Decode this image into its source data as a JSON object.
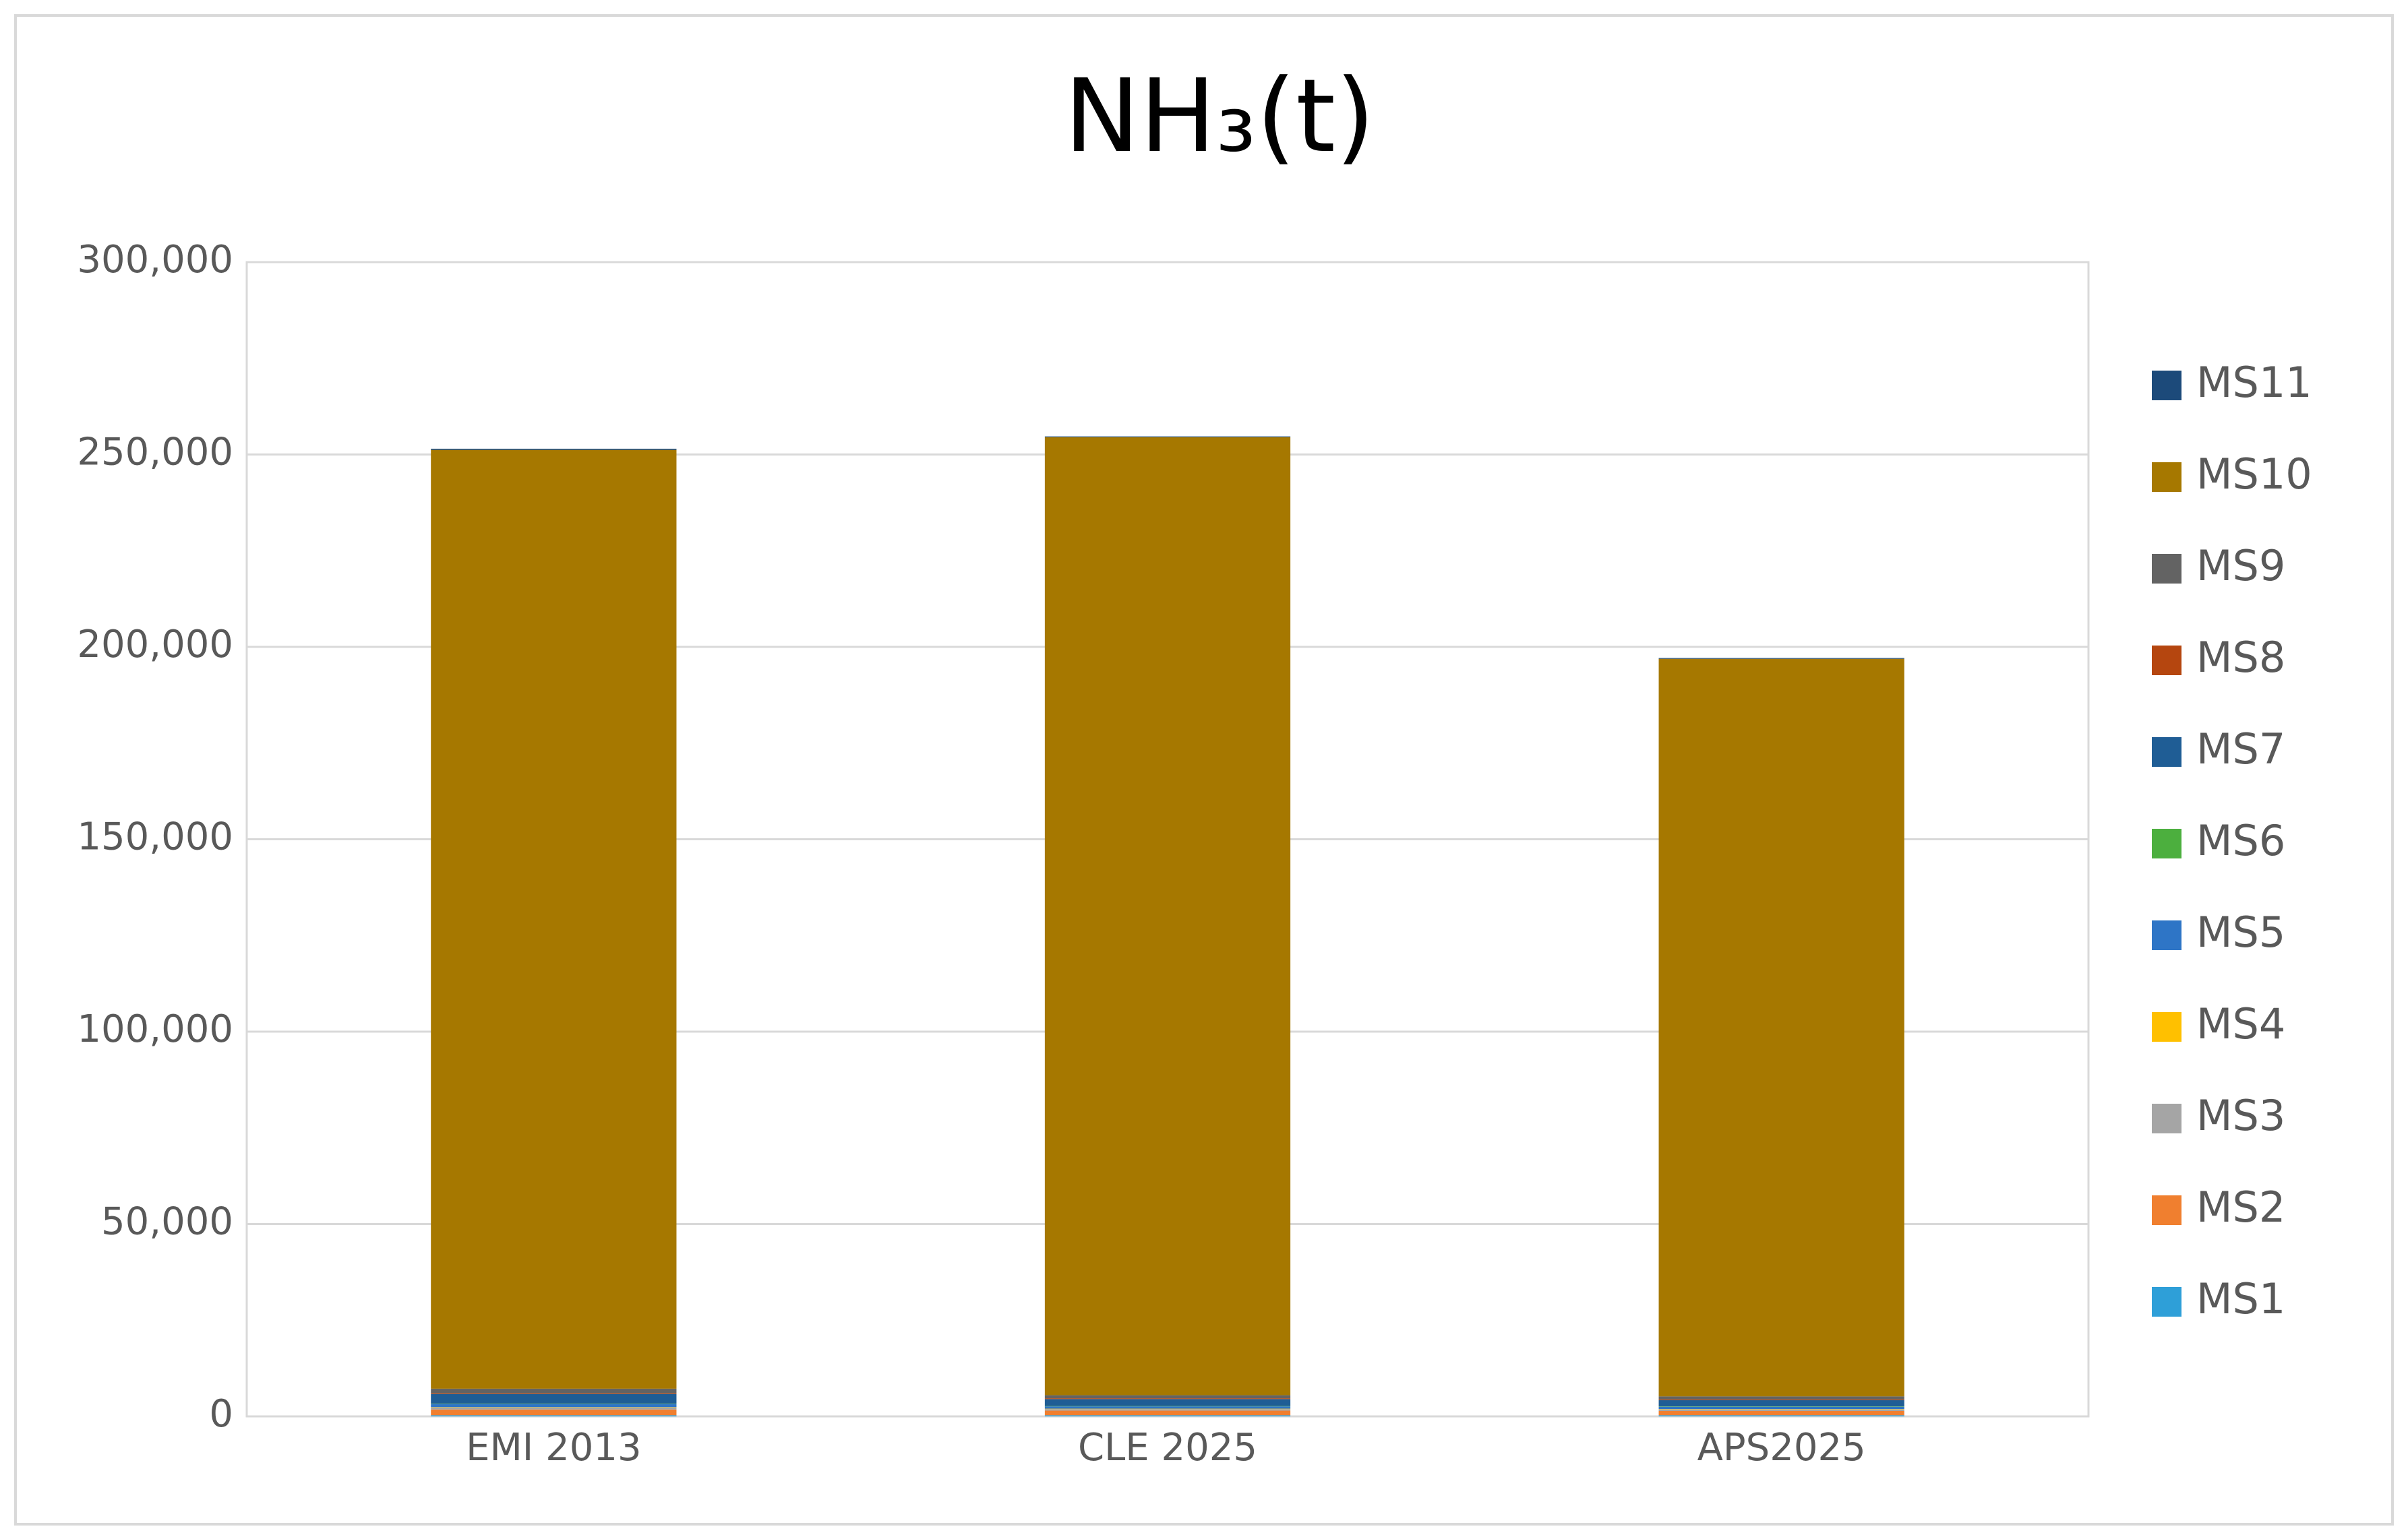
{
  "chart_data": {
    "type": "stacked-bar",
    "title": "NH₃(t)",
    "categories": [
      "EMI 2013",
      "CLE 2025",
      "APS2025"
    ],
    "series": [
      {
        "name": "MS1",
        "color": "#2e9fd8",
        "values": [
          300,
          300,
          300
        ]
      },
      {
        "name": "MS2",
        "color": "#f07f2f",
        "values": [
          1500,
          1200,
          1100
        ]
      },
      {
        "name": "MS3",
        "color": "#a5a5a5",
        "values": [
          500,
          400,
          400
        ]
      },
      {
        "name": "MS4",
        "color": "#ffc000",
        "values": [
          100,
          100,
          100
        ]
      },
      {
        "name": "MS5",
        "color": "#2e75c6",
        "values": [
          800,
          600,
          600
        ]
      },
      {
        "name": "MS6",
        "color": "#4caf3e",
        "values": [
          100,
          100,
          100
        ]
      },
      {
        "name": "MS7",
        "color": "#1f5d95",
        "values": [
          2500,
          1800,
          1600
        ]
      },
      {
        "name": "MS8",
        "color": "#b5460f",
        "values": [
          200,
          200,
          200
        ]
      },
      {
        "name": "MS9",
        "color": "#636363",
        "values": [
          1200,
          800,
          800
        ]
      },
      {
        "name": "MS10",
        "color": "#a67800",
        "values": [
          244000,
          249000,
          191700
        ]
      },
      {
        "name": "MS11",
        "color": "#1c4a7a",
        "values": [
          300,
          200,
          200
        ]
      }
    ],
    "ylim": [
      0,
      300000
    ],
    "yticks": [
      0,
      {
        "value": 50000,
        "label": "50,000"
      },
      {
        "value": 100000,
        "label": "100,000"
      },
      {
        "value": 150000,
        "label": "150,000"
      },
      {
        "value": 200000,
        "label": "200,000"
      },
      {
        "value": 250000,
        "label": "250,000"
      },
      {
        "value": 300000,
        "label": "300,000"
      }
    ],
    "grid": true,
    "legend": "right"
  }
}
